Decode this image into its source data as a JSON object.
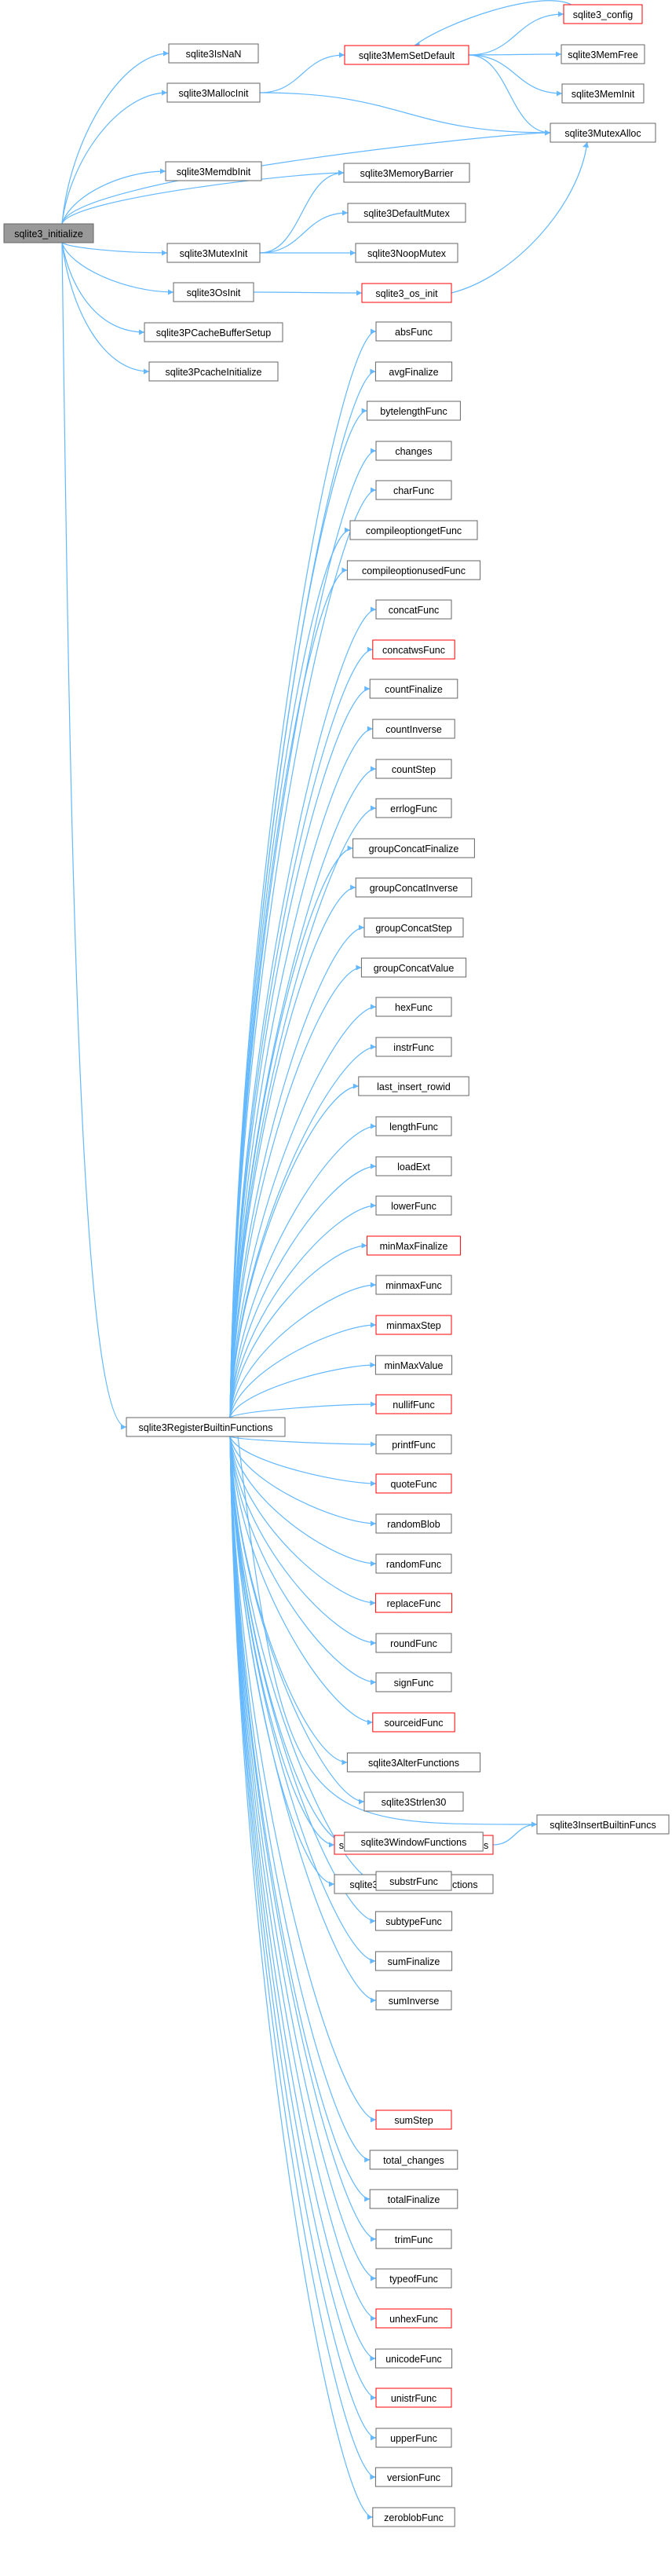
{
  "diagram": {
    "colors": {
      "edge": "#63b8ff",
      "box_border": "#666666",
      "red_border": "#ff0000",
      "root_fill": "#999999",
      "box_fill": "#ffffff"
    },
    "nodes": [
      {
        "id": "root",
        "label": "sqlite3_initialize",
        "style": "root"
      },
      {
        "id": "isnan",
        "label": "sqlite3IsNaN",
        "style": "normal"
      },
      {
        "id": "mallocinit",
        "label": "sqlite3MallocInit",
        "style": "normal"
      },
      {
        "id": "memsetdefault",
        "label": "sqlite3MemSetDefault",
        "style": "red"
      },
      {
        "id": "config",
        "label": "sqlite3_config",
        "style": "red"
      },
      {
        "id": "memfree",
        "label": "sqlite3MemFree",
        "style": "normal"
      },
      {
        "id": "meminit",
        "label": "sqlite3MemInit",
        "style": "normal"
      },
      {
        "id": "mutexalloc",
        "label": "sqlite3MutexAlloc",
        "style": "normal"
      },
      {
        "id": "memdbinit",
        "label": "sqlite3MemdbInit",
        "style": "normal"
      },
      {
        "id": "memorybarrier",
        "label": "sqlite3MemoryBarrier",
        "style": "normal"
      },
      {
        "id": "mutexinit",
        "label": "sqlite3MutexInit",
        "style": "normal"
      },
      {
        "id": "defaultmutex",
        "label": "sqlite3DefaultMutex",
        "style": "normal"
      },
      {
        "id": "noopmutex",
        "label": "sqlite3NoopMutex",
        "style": "normal"
      },
      {
        "id": "osinit",
        "label": "sqlite3OsInit",
        "style": "normal"
      },
      {
        "id": "os_init",
        "label": "sqlite3_os_init",
        "style": "red"
      },
      {
        "id": "pcachebuffersetup",
        "label": "sqlite3PCacheBufferSetup",
        "style": "normal"
      },
      {
        "id": "pcacheinitialize",
        "label": "sqlite3PcacheInitialize",
        "style": "normal"
      },
      {
        "id": "registerbuiltin",
        "label": "sqlite3RegisterBuiltinFunctions",
        "style": "normal"
      },
      {
        "id": "insertbuiltin",
        "label": "sqlite3InsertBuiltinFuncs",
        "style": "normal"
      },
      {
        "id": "absFunc",
        "label": "absFunc",
        "style": "normal"
      },
      {
        "id": "avgFinalize",
        "label": "avgFinalize",
        "style": "normal"
      },
      {
        "id": "bytelengthFunc",
        "label": "bytelengthFunc",
        "style": "normal"
      },
      {
        "id": "changes",
        "label": "changes",
        "style": "normal"
      },
      {
        "id": "charFunc",
        "label": "charFunc",
        "style": "normal"
      },
      {
        "id": "compileoptiongetFunc",
        "label": "compileoptiongetFunc",
        "style": "normal"
      },
      {
        "id": "compileoptionusedFunc",
        "label": "compileoptionusedFunc",
        "style": "normal"
      },
      {
        "id": "concatFunc",
        "label": "concatFunc",
        "style": "normal"
      },
      {
        "id": "concatwsFunc",
        "label": "concatwsFunc",
        "style": "red"
      },
      {
        "id": "countFinalize",
        "label": "countFinalize",
        "style": "normal"
      },
      {
        "id": "countInverse",
        "label": "countInverse",
        "style": "normal"
      },
      {
        "id": "countStep",
        "label": "countStep",
        "style": "normal"
      },
      {
        "id": "errlogFunc",
        "label": "errlogFunc",
        "style": "normal"
      },
      {
        "id": "groupConcatFinalize",
        "label": "groupConcatFinalize",
        "style": "normal"
      },
      {
        "id": "groupConcatInverse",
        "label": "groupConcatInverse",
        "style": "normal"
      },
      {
        "id": "groupConcatStep",
        "label": "groupConcatStep",
        "style": "normal"
      },
      {
        "id": "groupConcatValue",
        "label": "groupConcatValue",
        "style": "normal"
      },
      {
        "id": "hexFunc",
        "label": "hexFunc",
        "style": "normal"
      },
      {
        "id": "instrFunc",
        "label": "instrFunc",
        "style": "normal"
      },
      {
        "id": "last_insert_rowid",
        "label": "last_insert_rowid",
        "style": "normal"
      },
      {
        "id": "lengthFunc",
        "label": "lengthFunc",
        "style": "normal"
      },
      {
        "id": "loadExt",
        "label": "loadExt",
        "style": "normal"
      },
      {
        "id": "lowerFunc",
        "label": "lowerFunc",
        "style": "normal"
      },
      {
        "id": "minMaxFinalize",
        "label": "minMaxFinalize",
        "style": "red"
      },
      {
        "id": "minmaxFunc",
        "label": "minmaxFunc",
        "style": "normal"
      },
      {
        "id": "minmaxStep",
        "label": "minmaxStep",
        "style": "red"
      },
      {
        "id": "minMaxValue",
        "label": "minMaxValue",
        "style": "normal"
      },
      {
        "id": "nullifFunc",
        "label": "nullifFunc",
        "style": "red"
      },
      {
        "id": "printfFunc",
        "label": "printfFunc",
        "style": "normal"
      },
      {
        "id": "quoteFunc",
        "label": "quoteFunc",
        "style": "red"
      },
      {
        "id": "randomBlob",
        "label": "randomBlob",
        "style": "normal"
      },
      {
        "id": "randomFunc",
        "label": "randomFunc",
        "style": "normal"
      },
      {
        "id": "replaceFunc",
        "label": "replaceFunc",
        "style": "red"
      },
      {
        "id": "roundFunc",
        "label": "roundFunc",
        "style": "normal"
      },
      {
        "id": "signFunc",
        "label": "signFunc",
        "style": "normal"
      },
      {
        "id": "sourceidFunc",
        "label": "sourceidFunc",
        "style": "red"
      },
      {
        "id": "alterfunctions",
        "label": "sqlite3AlterFunctions",
        "style": "normal"
      },
      {
        "id": "registerdatetime",
        "label": "sqlite3RegisterDateTimeFunctions",
        "style": "red"
      },
      {
        "id": "registerjson",
        "label": "sqlite3RegisterJsonFunctions",
        "style": "normal"
      },
      {
        "id": "strlen30",
        "label": "sqlite3Strlen30",
        "style": "normal"
      },
      {
        "id": "windowfunctions",
        "label": "sqlite3WindowFunctions",
        "style": "normal"
      },
      {
        "id": "substrFunc",
        "label": "substrFunc",
        "style": "normal"
      },
      {
        "id": "subtypeFunc",
        "label": "subtypeFunc",
        "style": "normal"
      },
      {
        "id": "sumFinalize",
        "label": "sumFinalize",
        "style": "normal"
      },
      {
        "id": "sumInverse",
        "label": "sumInverse",
        "style": "normal"
      },
      {
        "id": "sumStep",
        "label": "sumStep",
        "style": "red"
      },
      {
        "id": "total_changes",
        "label": "total_changes",
        "style": "normal"
      },
      {
        "id": "totalFinalize",
        "label": "totalFinalize",
        "style": "normal"
      },
      {
        "id": "trimFunc",
        "label": "trimFunc",
        "style": "normal"
      },
      {
        "id": "typeofFunc",
        "label": "typeofFunc",
        "style": "normal"
      },
      {
        "id": "unhexFunc",
        "label": "unhexFunc",
        "style": "red"
      },
      {
        "id": "unicodeFunc",
        "label": "unicodeFunc",
        "style": "normal"
      },
      {
        "id": "unistrFunc",
        "label": "unistrFunc",
        "style": "red"
      },
      {
        "id": "upperFunc",
        "label": "upperFunc",
        "style": "normal"
      },
      {
        "id": "versionFunc",
        "label": "versionFunc",
        "style": "normal"
      },
      {
        "id": "zeroblobFunc",
        "label": "zeroblobFunc",
        "style": "normal"
      }
    ],
    "edges": [
      [
        "root",
        "isnan"
      ],
      [
        "root",
        "mallocinit"
      ],
      [
        "root",
        "mutexalloc"
      ],
      [
        "root",
        "memdbinit"
      ],
      [
        "root",
        "memorybarrier"
      ],
      [
        "root",
        "mutexinit"
      ],
      [
        "root",
        "osinit"
      ],
      [
        "root",
        "pcachebuffersetup"
      ],
      [
        "root",
        "pcacheinitialize"
      ],
      [
        "root",
        "registerbuiltin"
      ],
      [
        "mallocinit",
        "memsetdefault"
      ],
      [
        "mallocinit",
        "mutexalloc"
      ],
      [
        "memsetdefault",
        "config"
      ],
      [
        "config",
        "memsetdefault"
      ],
      [
        "memsetdefault",
        "memfree"
      ],
      [
        "memsetdefault",
        "meminit"
      ],
      [
        "memsetdefault",
        "mutexalloc"
      ],
      [
        "mutexinit",
        "memorybarrier"
      ],
      [
        "mutexinit",
        "defaultmutex"
      ],
      [
        "mutexinit",
        "noopmutex"
      ],
      [
        "osinit",
        "os_init"
      ],
      [
        "os_init",
        "mutexalloc"
      ],
      [
        "registerbuiltin",
        "absFunc"
      ],
      [
        "registerbuiltin",
        "avgFinalize"
      ],
      [
        "registerbuiltin",
        "bytelengthFunc"
      ],
      [
        "registerbuiltin",
        "changes"
      ],
      [
        "registerbuiltin",
        "charFunc"
      ],
      [
        "registerbuiltin",
        "compileoptiongetFunc"
      ],
      [
        "registerbuiltin",
        "compileoptionusedFunc"
      ],
      [
        "registerbuiltin",
        "concatFunc"
      ],
      [
        "registerbuiltin",
        "concatwsFunc"
      ],
      [
        "registerbuiltin",
        "countFinalize"
      ],
      [
        "registerbuiltin",
        "countInverse"
      ],
      [
        "registerbuiltin",
        "countStep"
      ],
      [
        "registerbuiltin",
        "errlogFunc"
      ],
      [
        "registerbuiltin",
        "groupConcatFinalize"
      ],
      [
        "registerbuiltin",
        "groupConcatInverse"
      ],
      [
        "registerbuiltin",
        "groupConcatStep"
      ],
      [
        "registerbuiltin",
        "groupConcatValue"
      ],
      [
        "registerbuiltin",
        "hexFunc"
      ],
      [
        "registerbuiltin",
        "instrFunc"
      ],
      [
        "registerbuiltin",
        "last_insert_rowid"
      ],
      [
        "registerbuiltin",
        "lengthFunc"
      ],
      [
        "registerbuiltin",
        "loadExt"
      ],
      [
        "registerbuiltin",
        "lowerFunc"
      ],
      [
        "registerbuiltin",
        "minMaxFinalize"
      ],
      [
        "registerbuiltin",
        "minmaxFunc"
      ],
      [
        "registerbuiltin",
        "minmaxStep"
      ],
      [
        "registerbuiltin",
        "minMaxValue"
      ],
      [
        "registerbuiltin",
        "nullifFunc"
      ],
      [
        "registerbuiltin",
        "printfFunc"
      ],
      [
        "registerbuiltin",
        "quoteFunc"
      ],
      [
        "registerbuiltin",
        "randomBlob"
      ],
      [
        "registerbuiltin",
        "randomFunc"
      ],
      [
        "registerbuiltin",
        "replaceFunc"
      ],
      [
        "registerbuiltin",
        "roundFunc"
      ],
      [
        "registerbuiltin",
        "signFunc"
      ],
      [
        "registerbuiltin",
        "sourceidFunc"
      ],
      [
        "registerbuiltin",
        "alterfunctions"
      ],
      [
        "registerbuiltin",
        "insertbuiltin"
      ],
      [
        "registerbuiltin",
        "registerdatetime"
      ],
      [
        "registerdatetime",
        "insertbuiltin"
      ],
      [
        "registerbuiltin",
        "registerjson"
      ],
      [
        "registerbuiltin",
        "strlen30"
      ],
      [
        "registerbuiltin",
        "windowfunctions"
      ],
      [
        "registerbuiltin",
        "substrFunc"
      ],
      [
        "registerbuiltin",
        "subtypeFunc"
      ],
      [
        "registerbuiltin",
        "sumFinalize"
      ],
      [
        "registerbuiltin",
        "sumInverse"
      ],
      [
        "registerbuiltin",
        "sumStep"
      ],
      [
        "registerbuiltin",
        "total_changes"
      ],
      [
        "registerbuiltin",
        "totalFinalize"
      ],
      [
        "registerbuiltin",
        "trimFunc"
      ],
      [
        "registerbuiltin",
        "typeofFunc"
      ],
      [
        "registerbuiltin",
        "unhexFunc"
      ],
      [
        "registerbuiltin",
        "unicodeFunc"
      ],
      [
        "registerbuiltin",
        "unistrFunc"
      ],
      [
        "registerbuiltin",
        "upperFunc"
      ],
      [
        "registerbuiltin",
        "versionFunc"
      ],
      [
        "registerbuiltin",
        "zeroblobFunc"
      ]
    ]
  }
}
